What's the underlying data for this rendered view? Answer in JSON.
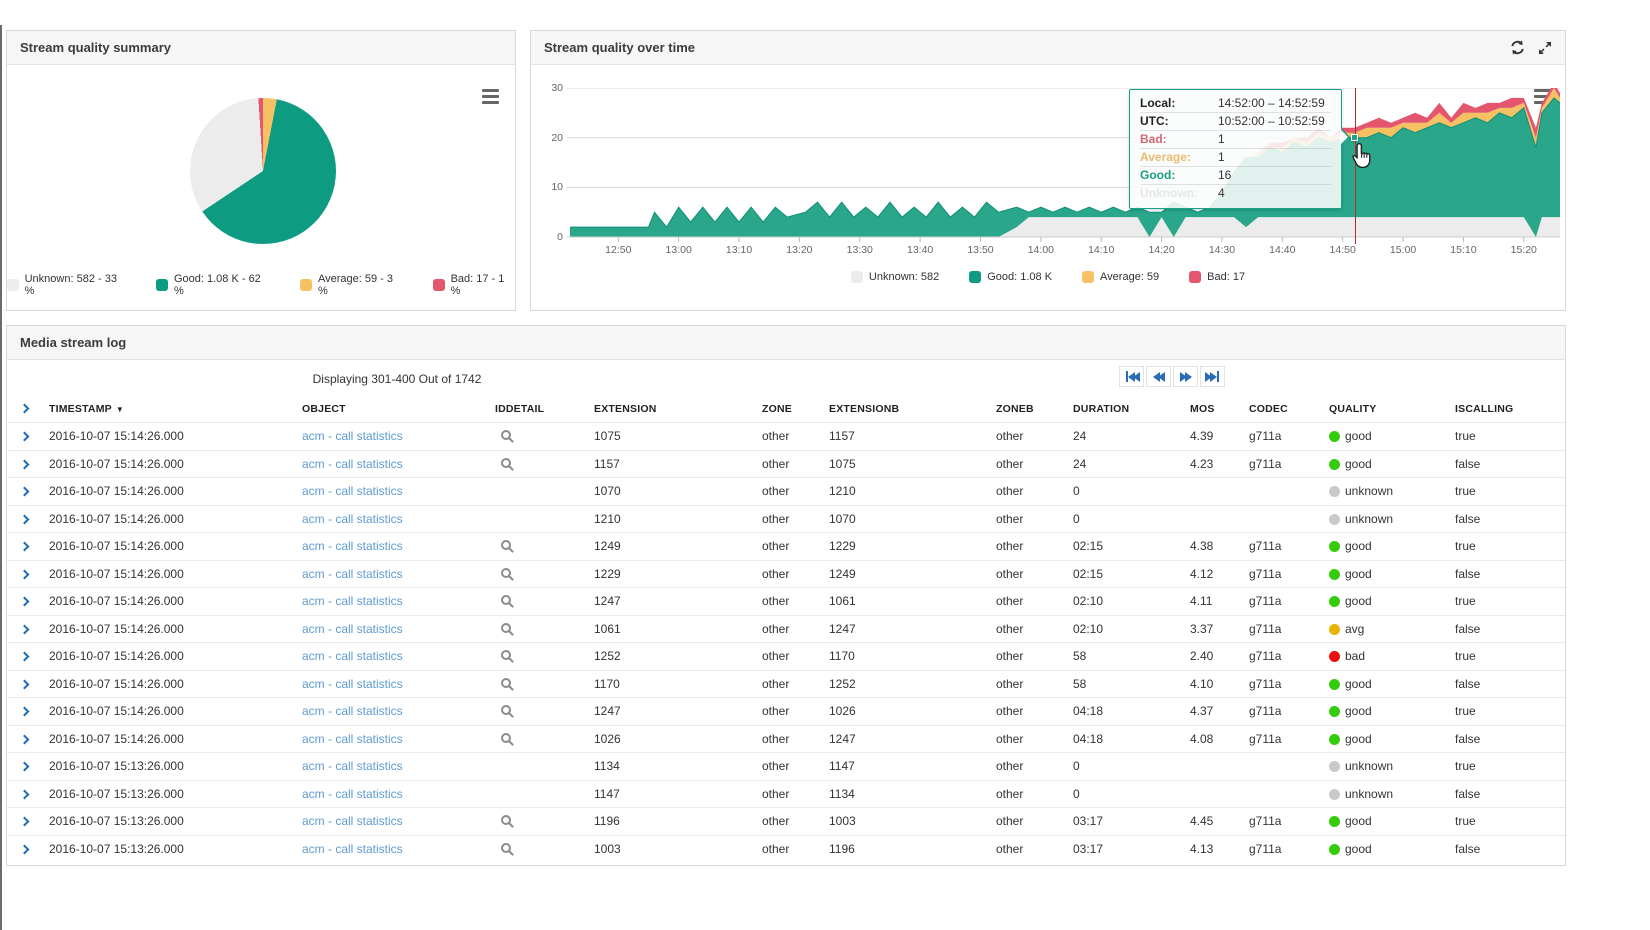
{
  "panels": {
    "summary": {
      "title": "Stream quality summary",
      "legend_items": [
        {
          "name": "Unknown",
          "label": "Unknown: 582 - 33 %",
          "color": "#ececec"
        },
        {
          "name": "Good",
          "label": "Good: 1.08 K - 62 %",
          "color": "#0d9b82"
        },
        {
          "name": "Average",
          "label": "Average: 59 - 3 %",
          "color": "#f5c163"
        },
        {
          "name": "Bad",
          "label": "Bad: 17 - 1 %",
          "color": "#e4556e"
        }
      ]
    },
    "overtime": {
      "title": "Stream quality over time",
      "legend_items": [
        {
          "name": "Unknown",
          "label": "Unknown: 582",
          "color": "#ececec"
        },
        {
          "name": "Good",
          "label": "Good: 1.08 K",
          "color": "#0d9b82"
        },
        {
          "name": "Average",
          "label": "Average: 59",
          "color": "#f5c163"
        },
        {
          "name": "Bad",
          "label": "Bad: 17",
          "color": "#e4556e"
        }
      ],
      "tooltip": {
        "rows": [
          {
            "label": "Local:",
            "value": "14:52:00 – 14:52:59",
            "color": "#222222",
            "faded": false
          },
          {
            "label": "UTC:",
            "value": "10:52:00 – 10:52:59",
            "color": "#222222",
            "faded": false
          },
          {
            "label": "Bad:",
            "value": "1",
            "color": "#cf6a74",
            "faded": false
          },
          {
            "label": "Average:",
            "value": "1",
            "color": "#ecba6f",
            "faded": false
          },
          {
            "label": "Good:",
            "value": "16",
            "color": "#1a9c83",
            "faded": false
          },
          {
            "label": "Unknown:",
            "value": "4",
            "color": "#bfbfbf",
            "faded": true
          }
        ]
      }
    },
    "log": {
      "title": "Media stream log",
      "paging_status": "Displaying 301-400 Out of 1742",
      "pagination_buttons": [
        "first",
        "previous",
        "next",
        "last"
      ],
      "columns": [
        "TIMESTAMP",
        "OBJECT",
        "IDDETAIL",
        "EXTENSION",
        "ZONE",
        "EXTENSIONB",
        "ZONEB",
        "DURATION",
        "MOS",
        "CODEC",
        "QUALITY",
        "ISCALLING"
      ],
      "sorted_column": "TIMESTAMP",
      "quality_colors": {
        "good": "#35cc0e",
        "avg": "#e9b400",
        "bad": "#ed0e0e",
        "unknown": "#c9c9c9"
      },
      "rows": [
        {
          "timestamp": "2016-10-07 15:14:26.000",
          "object": "acm - call statistics",
          "has_detail": true,
          "extension": "1075",
          "zone": "other",
          "extensionb": "1157",
          "zoneb": "other",
          "duration": "24",
          "mos": "4.39",
          "codec": "g711a",
          "quality": "good",
          "iscalling": "true"
        },
        {
          "timestamp": "2016-10-07 15:14:26.000",
          "object": "acm - call statistics",
          "has_detail": true,
          "extension": "1157",
          "zone": "other",
          "extensionb": "1075",
          "zoneb": "other",
          "duration": "24",
          "mos": "4.23",
          "codec": "g711a",
          "quality": "good",
          "iscalling": "false"
        },
        {
          "timestamp": "2016-10-07 15:14:26.000",
          "object": "acm - call statistics",
          "has_detail": false,
          "extension": "1070",
          "zone": "other",
          "extensionb": "1210",
          "zoneb": "other",
          "duration": "0",
          "mos": "",
          "codec": "",
          "quality": "unknown",
          "iscalling": "true"
        },
        {
          "timestamp": "2016-10-07 15:14:26.000",
          "object": "acm - call statistics",
          "has_detail": false,
          "extension": "1210",
          "zone": "other",
          "extensionb": "1070",
          "zoneb": "other",
          "duration": "0",
          "mos": "",
          "codec": "",
          "quality": "unknown",
          "iscalling": "false"
        },
        {
          "timestamp": "2016-10-07 15:14:26.000",
          "object": "acm - call statistics",
          "has_detail": true,
          "extension": "1249",
          "zone": "other",
          "extensionb": "1229",
          "zoneb": "other",
          "duration": "02:15",
          "mos": "4.38",
          "codec": "g711a",
          "quality": "good",
          "iscalling": "true"
        },
        {
          "timestamp": "2016-10-07 15:14:26.000",
          "object": "acm - call statistics",
          "has_detail": true,
          "extension": "1229",
          "zone": "other",
          "extensionb": "1249",
          "zoneb": "other",
          "duration": "02:15",
          "mos": "4.12",
          "codec": "g711a",
          "quality": "good",
          "iscalling": "false"
        },
        {
          "timestamp": "2016-10-07 15:14:26.000",
          "object": "acm - call statistics",
          "has_detail": true,
          "extension": "1247",
          "zone": "other",
          "extensionb": "1061",
          "zoneb": "other",
          "duration": "02:10",
          "mos": "4.11",
          "codec": "g711a",
          "quality": "good",
          "iscalling": "true"
        },
        {
          "timestamp": "2016-10-07 15:14:26.000",
          "object": "acm - call statistics",
          "has_detail": true,
          "extension": "1061",
          "zone": "other",
          "extensionb": "1247",
          "zoneb": "other",
          "duration": "02:10",
          "mos": "3.37",
          "codec": "g711a",
          "quality": "avg",
          "iscalling": "false"
        },
        {
          "timestamp": "2016-10-07 15:14:26.000",
          "object": "acm - call statistics",
          "has_detail": true,
          "extension": "1252",
          "zone": "other",
          "extensionb": "1170",
          "zoneb": "other",
          "duration": "58",
          "mos": "2.40",
          "codec": "g711a",
          "quality": "bad",
          "iscalling": "true"
        },
        {
          "timestamp": "2016-10-07 15:14:26.000",
          "object": "acm - call statistics",
          "has_detail": true,
          "extension": "1170",
          "zone": "other",
          "extensionb": "1252",
          "zoneb": "other",
          "duration": "58",
          "mos": "4.10",
          "codec": "g711a",
          "quality": "good",
          "iscalling": "false"
        },
        {
          "timestamp": "2016-10-07 15:14:26.000",
          "object": "acm - call statistics",
          "has_detail": true,
          "extension": "1247",
          "zone": "other",
          "extensionb": "1026",
          "zoneb": "other",
          "duration": "04:18",
          "mos": "4.37",
          "codec": "g711a",
          "quality": "good",
          "iscalling": "true"
        },
        {
          "timestamp": "2016-10-07 15:14:26.000",
          "object": "acm - call statistics",
          "has_detail": true,
          "extension": "1026",
          "zone": "other",
          "extensionb": "1247",
          "zoneb": "other",
          "duration": "04:18",
          "mos": "4.08",
          "codec": "g711a",
          "quality": "good",
          "iscalling": "false"
        },
        {
          "timestamp": "2016-10-07 15:13:26.000",
          "object": "acm - call statistics",
          "has_detail": false,
          "extension": "1134",
          "zone": "other",
          "extensionb": "1147",
          "zoneb": "other",
          "duration": "0",
          "mos": "",
          "codec": "",
          "quality": "unknown",
          "iscalling": "true"
        },
        {
          "timestamp": "2016-10-07 15:13:26.000",
          "object": "acm - call statistics",
          "has_detail": false,
          "extension": "1147",
          "zone": "other",
          "extensionb": "1134",
          "zoneb": "other",
          "duration": "0",
          "mos": "",
          "codec": "",
          "quality": "unknown",
          "iscalling": "false"
        },
        {
          "timestamp": "2016-10-07 15:13:26.000",
          "object": "acm - call statistics",
          "has_detail": true,
          "extension": "1196",
          "zone": "other",
          "extensionb": "1003",
          "zoneb": "other",
          "duration": "03:17",
          "mos": "4.45",
          "codec": "g711a",
          "quality": "good",
          "iscalling": "true"
        },
        {
          "timestamp": "2016-10-07 15:13:26.000",
          "object": "acm - call statistics",
          "has_detail": true,
          "extension": "1003",
          "zone": "other",
          "extensionb": "1196",
          "zoneb": "other",
          "duration": "03:17",
          "mos": "4.13",
          "codec": "g711a",
          "quality": "good",
          "iscalling": "false"
        }
      ]
    }
  },
  "chart_data": [
    {
      "type": "pie",
      "title": "Stream quality summary",
      "slices": [
        {
          "name": "Unknown",
          "value": "582",
          "pct": 33,
          "color": "#ececec"
        },
        {
          "name": "Good",
          "value": "1.08 K",
          "pct": 62,
          "color": "#0d9b82"
        },
        {
          "name": "Average",
          "value": "59",
          "pct": 3,
          "color": "#f5c163"
        },
        {
          "name": "Bad",
          "value": "17",
          "pct": 1,
          "color": "#e4556e"
        }
      ],
      "draw_order_from_top": [
        "Average",
        "Good",
        "Unknown",
        "Bad"
      ],
      "legend_position": "bottom"
    },
    {
      "type": "area",
      "title": "Stream quality over time",
      "stacked": true,
      "ylim": [
        0,
        30
      ],
      "y_ticks": [
        0,
        10,
        20,
        30
      ],
      "x_ticks": [
        "12:50",
        "13:00",
        "13:10",
        "13:20",
        "13:30",
        "13:40",
        "13:50",
        "14:00",
        "14:10",
        "14:20",
        "14:30",
        "14:40",
        "14:50",
        "15:00",
        "15:10",
        "15:20"
      ],
      "x_domain_minutes": [
        761.5,
        926
      ],
      "series_order_bottom_to_top": [
        "Unknown",
        "Good",
        "Average",
        "Bad"
      ],
      "colors": {
        "Unknown": "#ececec",
        "Good": "#2aa68b",
        "Average": "#f5c163",
        "Bad": "#e4556e"
      },
      "crosshair": {
        "time": "14:52",
        "stack_value": 20
      },
      "points": [
        [
          "12:42",
          0,
          2,
          0,
          0
        ],
        [
          "12:50",
          0,
          2,
          0,
          0
        ],
        [
          "12:55",
          0,
          2,
          0,
          0
        ],
        [
          "12:56",
          0,
          5,
          0,
          0
        ],
        [
          "12:58",
          0,
          2,
          0,
          0
        ],
        [
          "13:00",
          0,
          6,
          0,
          0
        ],
        [
          "13:02",
          0,
          3,
          0,
          0
        ],
        [
          "13:04",
          0,
          6,
          0,
          0
        ],
        [
          "13:06",
          0,
          3,
          0,
          0
        ],
        [
          "13:08",
          0,
          6,
          0,
          0
        ],
        [
          "13:10",
          0,
          3,
          0,
          0
        ],
        [
          "13:12",
          0,
          6,
          0,
          0
        ],
        [
          "13:14",
          0,
          3,
          0,
          0
        ],
        [
          "13:16",
          0,
          6,
          0,
          0
        ],
        [
          "13:18",
          0,
          4,
          0,
          0
        ],
        [
          "13:21",
          0,
          5,
          0,
          0
        ],
        [
          "13:23",
          0,
          7,
          0,
          0
        ],
        [
          "13:25",
          0,
          4,
          0,
          0
        ],
        [
          "13:27",
          0,
          7,
          0,
          0
        ],
        [
          "13:29",
          0,
          4,
          0,
          0
        ],
        [
          "13:31",
          0,
          6,
          0,
          0
        ],
        [
          "13:33",
          0,
          4,
          0,
          0
        ],
        [
          "13:35",
          0,
          7,
          0,
          0
        ],
        [
          "13:37",
          0,
          4,
          0,
          0
        ],
        [
          "13:39",
          0,
          6,
          0,
          0
        ],
        [
          "13:41",
          0,
          4,
          0,
          0
        ],
        [
          "13:43",
          0,
          7,
          0,
          0
        ],
        [
          "13:45",
          0,
          4,
          0,
          0
        ],
        [
          "13:47",
          0,
          6,
          0,
          0
        ],
        [
          "13:49",
          0,
          4,
          0,
          0
        ],
        [
          "13:51",
          0,
          7,
          0,
          0
        ],
        [
          "13:53",
          0,
          5,
          0,
          0
        ],
        [
          "13:56",
          2,
          4,
          0,
          0
        ],
        [
          "13:58",
          4,
          1,
          0,
          0
        ],
        [
          "14:00",
          4,
          2,
          0,
          0
        ],
        [
          "14:02",
          4,
          1,
          0,
          0
        ],
        [
          "14:04",
          4,
          2,
          0,
          0
        ],
        [
          "14:06",
          4,
          1,
          0,
          0
        ],
        [
          "14:08",
          4,
          2,
          0,
          0
        ],
        [
          "14:10",
          4,
          1,
          0,
          0
        ],
        [
          "14:12",
          4,
          2,
          0,
          0
        ],
        [
          "14:14",
          4,
          1,
          0,
          0
        ],
        [
          "14:16",
          4,
          2,
          0,
          0
        ],
        [
          "14:18",
          0,
          5,
          0,
          0
        ],
        [
          "14:20",
          4,
          1,
          0,
          0
        ],
        [
          "14:22",
          0,
          7,
          0,
          0
        ],
        [
          "14:24",
          4,
          2,
          0,
          0
        ],
        [
          "14:26",
          4,
          1,
          0,
          0
        ],
        [
          "14:28",
          4,
          2,
          0,
          0
        ],
        [
          "14:30",
          4,
          5,
          0,
          0
        ],
        [
          "14:32",
          4,
          9,
          0,
          0
        ],
        [
          "14:34",
          2,
          14,
          0,
          0
        ],
        [
          "14:36",
          4,
          12,
          1,
          0
        ],
        [
          "14:38",
          4,
          14,
          0,
          1
        ],
        [
          "14:40",
          4,
          13,
          1,
          1
        ],
        [
          "14:42",
          4,
          15,
          1,
          0
        ],
        [
          "14:44",
          4,
          14,
          1,
          1
        ],
        [
          "14:46",
          4,
          16,
          1,
          1
        ],
        [
          "14:48",
          4,
          15,
          1,
          0
        ],
        [
          "14:50",
          4,
          16,
          1,
          1
        ],
        [
          "14:52",
          4,
          16,
          1,
          1
        ],
        [
          "14:54",
          4,
          16,
          2,
          1
        ],
        [
          "14:56",
          4,
          17,
          1,
          2
        ],
        [
          "14:58",
          4,
          16,
          2,
          1
        ],
        [
          "15:00",
          4,
          18,
          1,
          1
        ],
        [
          "15:02",
          4,
          17,
          2,
          2
        ],
        [
          "15:04",
          4,
          18,
          1,
          1
        ],
        [
          "15:06",
          4,
          19,
          2,
          2
        ],
        [
          "15:08",
          4,
          18,
          1,
          1
        ],
        [
          "15:10",
          4,
          19,
          2,
          2
        ],
        [
          "15:12",
          4,
          20,
          1,
          1
        ],
        [
          "15:14",
          4,
          19,
          2,
          2
        ],
        [
          "15:16",
          4,
          21,
          1,
          1
        ],
        [
          "15:18",
          4,
          20,
          2,
          2
        ],
        [
          "15:20",
          4,
          22,
          1,
          1
        ],
        [
          "15:22",
          0,
          18,
          2,
          2
        ],
        [
          "15:23",
          4,
          21,
          1,
          1
        ],
        [
          "15:25",
          4,
          24,
          2,
          1
        ],
        [
          "15:26",
          4,
          23,
          1,
          1
        ]
      ]
    }
  ]
}
